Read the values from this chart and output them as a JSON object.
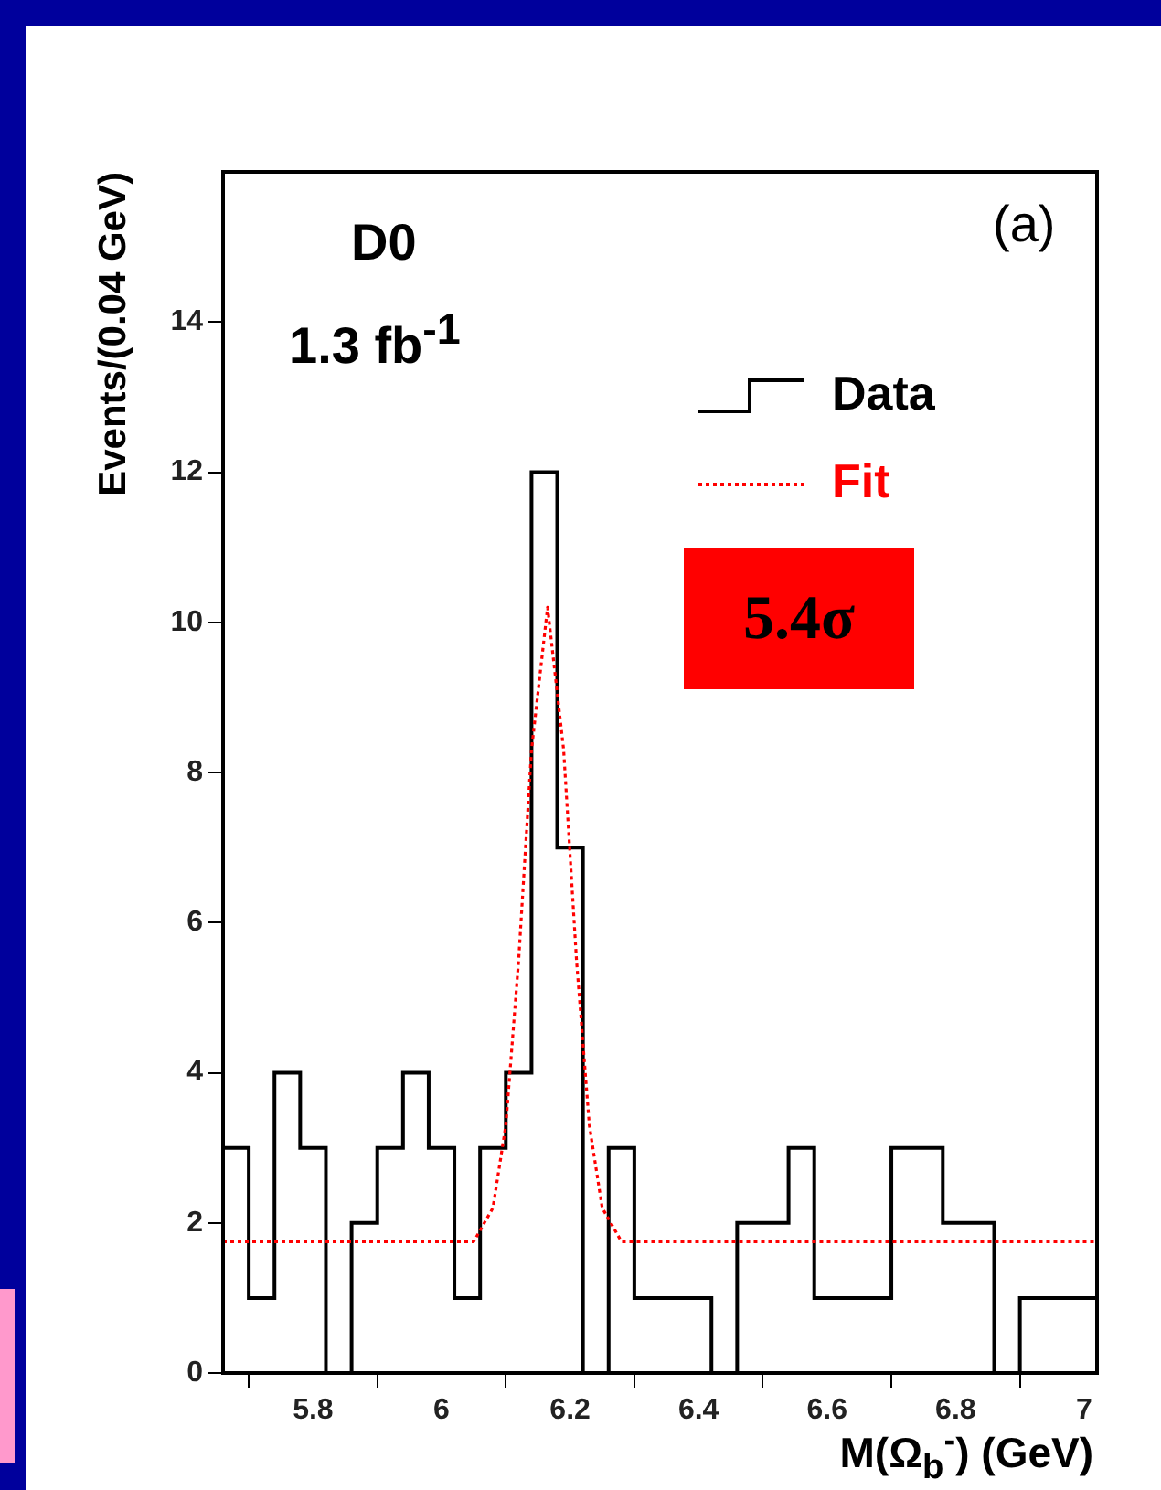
{
  "chart_data": {
    "type": "histogram",
    "xlabel": "M(Ω$_{b}$$^{-}$) (GeV)",
    "ylabel": "Events/(0.04 GeV)",
    "annotations": [
      "D0",
      "1.3 fb$^{-1}$",
      "(a)",
      "5.4σ"
    ],
    "bins": [
      5.66,
      5.7,
      5.74,
      5.78,
      5.82,
      5.86,
      5.9,
      5.94,
      5.98,
      6.02,
      6.06,
      6.1,
      6.14,
      6.18,
      6.22,
      6.26,
      6.3,
      6.34,
      6.38,
      6.42,
      6.46,
      6.5,
      6.54,
      6.58,
      6.62,
      6.66,
      6.7,
      6.74,
      6.78,
      6.82,
      6.86,
      6.9,
      6.94,
      6.98,
      7.02
    ],
    "series": [
      {
        "name": "Data",
        "color": "#000000",
        "values": [
          3,
          1,
          4,
          3,
          0,
          2,
          3,
          4,
          3,
          1,
          3,
          4,
          12,
          7,
          0,
          3,
          1,
          1,
          1,
          0,
          2,
          2,
          3,
          1,
          1,
          1,
          3,
          3,
          2,
          2,
          0,
          1,
          1,
          1
        ]
      },
      {
        "name": "Fit",
        "type": "line",
        "color": "#ff0000",
        "line_style": "dotted",
        "x": [
          5.66,
          6.05,
          6.08,
          6.1,
          6.12,
          6.14,
          6.165,
          6.19,
          6.21,
          6.23,
          6.25,
          6.28,
          7.02
        ],
        "values": [
          1.75,
          1.75,
          2.2,
          3.3,
          5.5,
          8.3,
          10.2,
          8.3,
          5.5,
          3.3,
          2.2,
          1.75,
          1.75
        ]
      }
    ],
    "xlim": [
      5.66,
      7.02
    ],
    "xticks": [
      5.8,
      6,
      6.2,
      6.4,
      6.6,
      6.8,
      7
    ],
    "ylim": [
      0,
      16
    ],
    "yticks": [
      0,
      2,
      4,
      6,
      8,
      10,
      12,
      14
    ],
    "grid": false,
    "legend": "top right",
    "marker": "none"
  }
}
